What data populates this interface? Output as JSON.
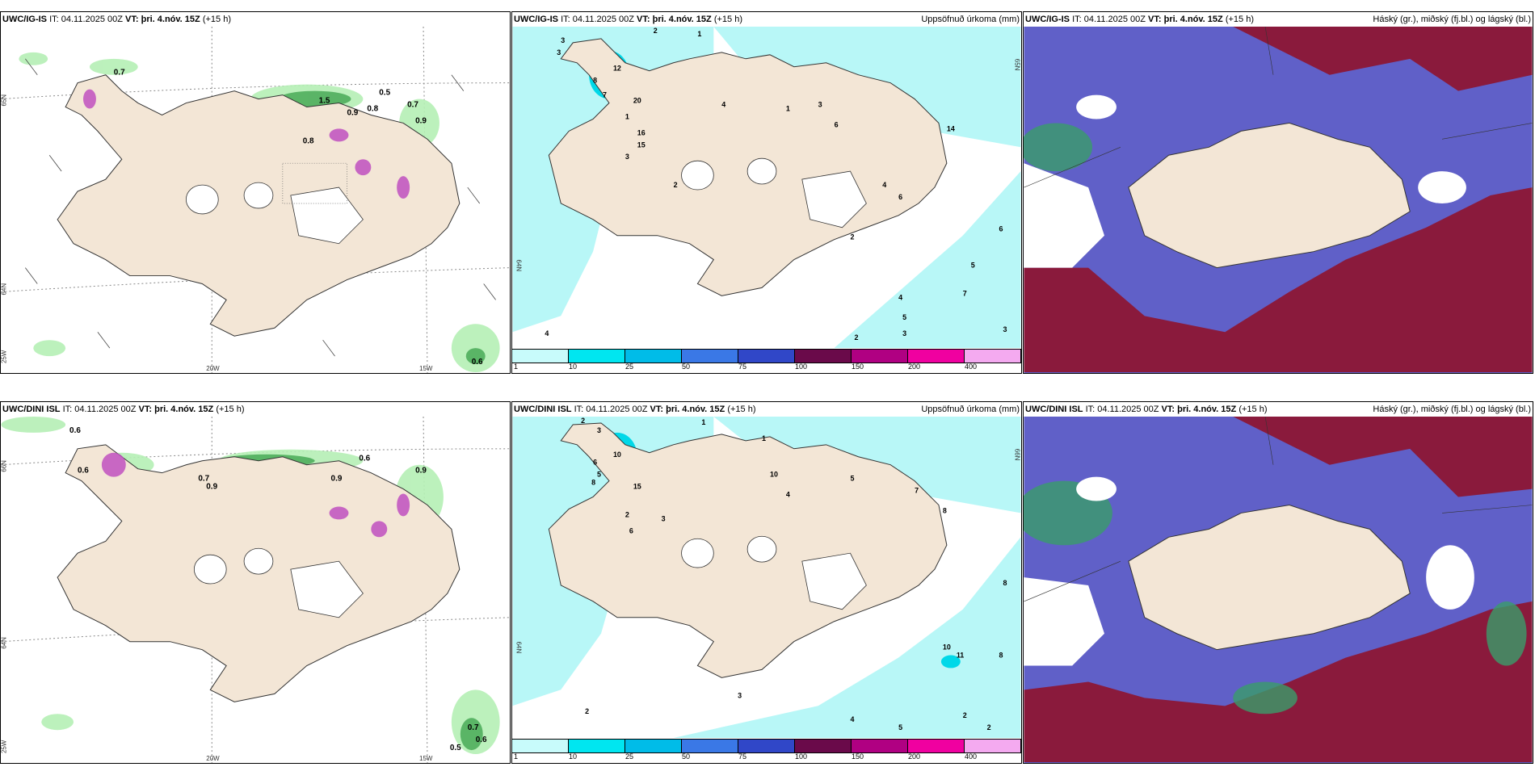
{
  "rows": [
    {
      "model": "UWC/IG-IS",
      "it_label": "IT: 04.11.2025 00Z",
      "vt_label": "VT: þri. 4.nóv. 15Z",
      "lead": "(+15 h)",
      "wind_lat_labels": [
        "65N",
        "64N",
        "25W"
      ],
      "wind_lon_labels": [
        "20W",
        "15W"
      ],
      "wind_values": [
        "0.7",
        "0.8",
        "1.5",
        "0.9",
        "0.5",
        "0.8",
        "0.7",
        "0.9",
        "0.6"
      ],
      "precip_values": [
        "2",
        "1",
        "3",
        "3",
        "12",
        "8",
        "7",
        "20",
        "1",
        "16",
        "15",
        "3",
        "2",
        "4",
        "1",
        "3",
        "6",
        "14",
        "6",
        "5",
        "4",
        "2",
        "3",
        "4",
        "7",
        "5",
        "4",
        "6",
        "2",
        "3"
      ],
      "precip_lat_labels": [
        "65N",
        "64N"
      ]
    },
    {
      "model": "UWC/DINI ISL",
      "it_label": "IT: 04.11.2025 00Z",
      "vt_label": "VT: þri. 4.nóv. 15Z",
      "lead": "(+15 h)",
      "wind_lat_labels": [
        "66N",
        "64N",
        "25W"
      ],
      "wind_lon_labels": [
        "20W",
        "15W"
      ],
      "wind_values": [
        "0.6",
        "0.6",
        "0.7",
        "0.9",
        "0.9",
        "0.6",
        "0.9",
        "0.7",
        "0.6",
        "0.5"
      ],
      "precip_values": [
        "2",
        "1",
        "3",
        "10",
        "6",
        "5",
        "8",
        "15",
        "2",
        "6",
        "3",
        "1",
        "10",
        "4",
        "5",
        "7",
        "8",
        "11",
        "10",
        "2",
        "3",
        "8",
        "4",
        "2",
        "5",
        "8",
        "2"
      ],
      "precip_lat_labels": [
        "66N",
        "64N"
      ]
    }
  ],
  "precip_title": "Uppsöfnuð úrkoma (mm)",
  "cloud_title": "Háský (gr.), miðský (fj.bl.) og lágský (bl.)",
  "legend": {
    "labels": [
      "1",
      "10",
      "25",
      "50",
      "75",
      "100",
      "150",
      "200",
      "400"
    ],
    "colors": [
      "#c8fbfb",
      "#00e6f0",
      "#00bce8",
      "#3a78e6",
      "#3047c8",
      "#6a0a4a",
      "#b00082",
      "#f000a0",
      "#f4aaf0"
    ]
  },
  "colors": {
    "land": "#f3e6d6",
    "sea": "#ffffff",
    "precip_light": "#b8f7f7",
    "cloud_high": "#8a1a3c",
    "cloud_mid": "#6060c8",
    "cloud_low": "#3a9c6a",
    "green_precip": "#b5efb5"
  }
}
